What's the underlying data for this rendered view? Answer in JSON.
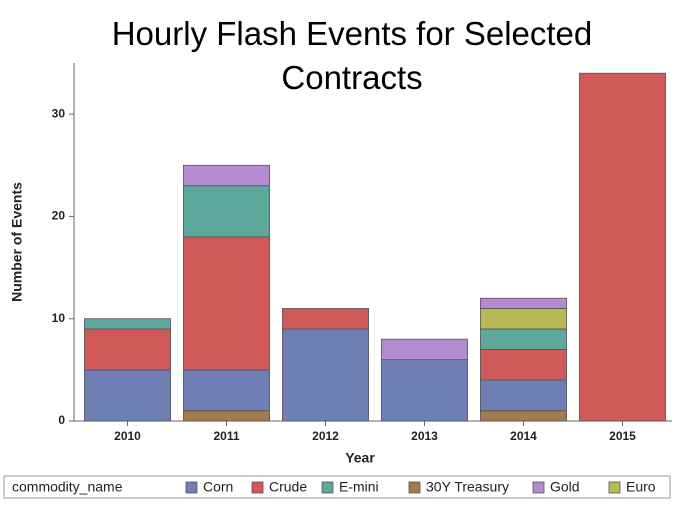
{
  "chart_data": {
    "type": "stacked_bar",
    "title": "Hourly Flash Events for Selected Contracts",
    "x_label": "Year",
    "y_label": "Number of Events",
    "legend_title": "commodity_name",
    "categories": [
      "2010",
      "2011",
      "2012",
      "2013",
      "2014",
      "2015"
    ],
    "series": [
      {
        "name": "Corn",
        "color": "#6f7fb5",
        "values": [
          5,
          4,
          9,
          6,
          3,
          0
        ]
      },
      {
        "name": "Crude",
        "color": "#d05a5a",
        "values": [
          4,
          13,
          2,
          0,
          3,
          34
        ]
      },
      {
        "name": "E-mini",
        "color": "#5fa89e",
        "values": [
          1,
          5,
          0,
          0,
          2,
          0
        ]
      },
      {
        "name": "30Y Treasury",
        "color": "#a57a4f",
        "values": [
          0,
          1,
          0,
          0,
          1,
          0
        ]
      },
      {
        "name": "Gold",
        "color": "#b48bd1",
        "values": [
          0,
          2,
          0,
          2,
          1,
          0
        ]
      },
      {
        "name": "Euro",
        "color": "#b8bb55",
        "values": [
          0,
          0,
          0,
          0,
          2,
          0
        ]
      }
    ],
    "ylim": [
      0,
      35
    ],
    "yticks": [
      0,
      10,
      20,
      30
    ]
  }
}
